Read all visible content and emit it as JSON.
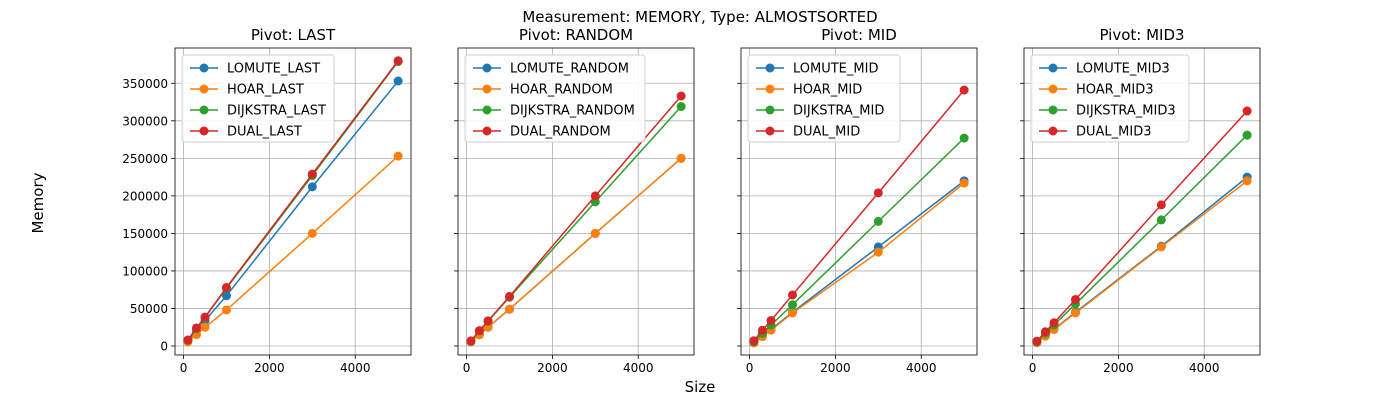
{
  "figure": {
    "suptitle": "Measurement: MEMORY, Type: ALMOSTSORTED",
    "xlabel": "Size",
    "ylabel": "Memory"
  },
  "colors": {
    "blue": "#1f77b4",
    "orange": "#ff7f0e",
    "green": "#2ca02c",
    "red": "#d62728",
    "grid": "#b0b0b0"
  },
  "chart_data": [
    {
      "type": "line",
      "title": "Pivot: LAST",
      "x": [
        100,
        300,
        500,
        1000,
        3000,
        5000
      ],
      "xlim": [
        -200,
        5300
      ],
      "xticks": [
        0,
        2000,
        4000
      ],
      "ylim": [
        -12000,
        397000
      ],
      "yticks": [
        0,
        50000,
        100000,
        150000,
        200000,
        250000,
        300000,
        350000
      ],
      "grid": true,
      "legend": "top-left",
      "series": [
        {
          "name": "LOMUTE_LAST",
          "color": "blue",
          "values": [
            6500,
            20000,
            34000,
            67000,
            212000,
            353000
          ]
        },
        {
          "name": "HOAR_LAST",
          "color": "orange",
          "values": [
            5500,
            15000,
            25000,
            48000,
            150000,
            253000
          ]
        },
        {
          "name": "DIJKSTRA_LAST",
          "color": "green",
          "values": [
            7500,
            23000,
            38000,
            77000,
            227000,
            379000
          ]
        },
        {
          "name": "DUAL_LAST",
          "color": "red",
          "values": [
            8000,
            24000,
            38500,
            78000,
            229000,
            380000
          ]
        }
      ]
    },
    {
      "type": "line",
      "title": "Pivot: RANDOM",
      "x": [
        100,
        300,
        500,
        1000,
        3000,
        5000
      ],
      "xlim": [
        -200,
        5300
      ],
      "xticks": [
        0,
        2000,
        4000
      ],
      "ylim": [
        -12000,
        397000
      ],
      "yticks": [
        0,
        50000,
        100000,
        150000,
        200000,
        250000,
        300000,
        350000
      ],
      "grid": true,
      "legend": "top-left",
      "series": [
        {
          "name": "LOMUTE_RANDOM",
          "color": "blue",
          "values": [
            5500,
            15000,
            25000,
            49000,
            150000,
            250000
          ]
        },
        {
          "name": "HOAR_RANDOM",
          "color": "orange",
          "values": [
            5500,
            15000,
            25000,
            49000,
            150000,
            250000
          ]
        },
        {
          "name": "DIJKSTRA_RANDOM",
          "color": "green",
          "values": [
            6500,
            20000,
            33000,
            65000,
            192000,
            319000
          ]
        },
        {
          "name": "DUAL_RANDOM",
          "color": "red",
          "values": [
            6800,
            20500,
            33500,
            66000,
            200000,
            333000
          ]
        }
      ]
    },
    {
      "type": "line",
      "title": "Pivot: MID",
      "x": [
        100,
        300,
        500,
        1000,
        3000,
        5000
      ],
      "xlim": [
        -200,
        5300
      ],
      "xticks": [
        0,
        2000,
        4000
      ],
      "ylim": [
        -12000,
        397000
      ],
      "yticks": [
        0,
        50000,
        100000,
        150000,
        200000,
        250000,
        300000,
        350000
      ],
      "grid": true,
      "legend": "top-left",
      "series": [
        {
          "name": "LOMUTE_MID",
          "color": "blue",
          "values": [
            4500,
            13500,
            22000,
            45000,
            132000,
            220000
          ]
        },
        {
          "name": "HOAR_MID",
          "color": "orange",
          "values": [
            4000,
            12500,
            21000,
            44000,
            125000,
            217000
          ]
        },
        {
          "name": "DIJKSTRA_MID",
          "color": "green",
          "values": [
            5500,
            17000,
            28000,
            55000,
            166000,
            277000
          ]
        },
        {
          "name": "DUAL_MID",
          "color": "red",
          "values": [
            7000,
            21000,
            34000,
            68000,
            204000,
            341000
          ]
        }
      ]
    },
    {
      "type": "line",
      "title": "Pivot: MID3",
      "x": [
        100,
        300,
        500,
        1000,
        3000,
        5000
      ],
      "xlim": [
        -200,
        5300
      ],
      "xticks": [
        0,
        2000,
        4000
      ],
      "ylim": [
        -12000,
        397000
      ],
      "yticks": [
        0,
        50000,
        100000,
        150000,
        200000,
        250000,
        300000,
        350000
      ],
      "grid": true,
      "legend": "top-left",
      "series": [
        {
          "name": "LOMUTE_MID3",
          "color": "blue",
          "values": [
            4500,
            13500,
            22500,
            45000,
            133000,
            225000
          ]
        },
        {
          "name": "HOAR_MID3",
          "color": "orange",
          "values": [
            4400,
            13000,
            22000,
            44000,
            132000,
            220000
          ]
        },
        {
          "name": "DIJKSTRA_MID3",
          "color": "green",
          "values": [
            5500,
            17000,
            28000,
            56000,
            168000,
            281000
          ]
        },
        {
          "name": "DUAL_MID3",
          "color": "red",
          "values": [
            6500,
            19000,
            31000,
            62000,
            188000,
            313000
          ]
        }
      ]
    }
  ]
}
